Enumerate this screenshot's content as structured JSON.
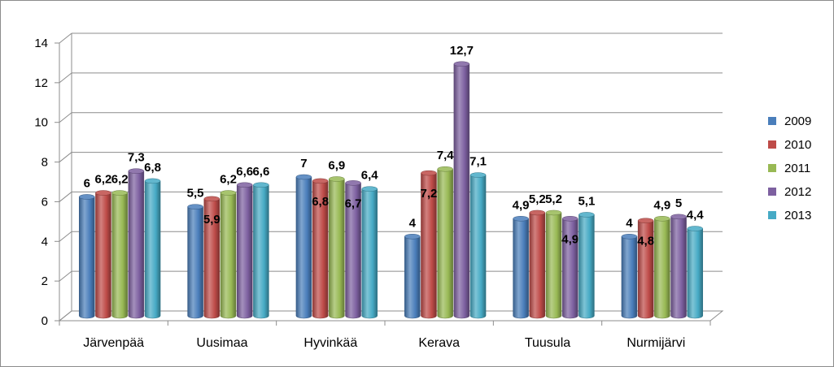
{
  "chart_data": {
    "type": "bar",
    "title": "",
    "xlabel": "",
    "ylabel": "",
    "ylim": [
      0,
      14
    ],
    "yticks": [
      0,
      2,
      4,
      6,
      8,
      10,
      12,
      14
    ],
    "grid": true,
    "legend_position": "right",
    "categories": [
      "Järvenpää",
      "Uusimaa",
      "Hyvinkää",
      "Kerava",
      "Tuusula",
      "Nurmijärvi"
    ],
    "series": [
      {
        "name": "2009",
        "color": "#4a7ebb",
        "values": [
          6,
          5.5,
          7,
          4,
          4.9,
          4
        ],
        "labels": [
          "6",
          "5,5",
          "7",
          "4",
          "4,9",
          "4"
        ]
      },
      {
        "name": "2010",
        "color": "#be4b48",
        "values": [
          6.2,
          5.9,
          6.8,
          7.2,
          5.2,
          4.8
        ],
        "labels": [
          "6,2",
          "5,9",
          "6,8",
          "7,2",
          "5,2",
          "4,8"
        ]
      },
      {
        "name": "2011",
        "color": "#98b954",
        "values": [
          6.2,
          6.2,
          6.9,
          7.4,
          5.2,
          4.9
        ],
        "labels": [
          "6,2",
          "6,2",
          "6,9",
          "7,4",
          "5,2",
          "4,9"
        ]
      },
      {
        "name": "2012",
        "color": "#7d60a0",
        "values": [
          7.3,
          6.6,
          6.7,
          12.7,
          4.9,
          5
        ],
        "labels": [
          "7,3",
          "6,6",
          "6,7",
          "12,7",
          "4,9",
          "5"
        ]
      },
      {
        "name": "2013",
        "color": "#46aac5",
        "values": [
          6.8,
          6.6,
          6.4,
          7.1,
          5.1,
          4.4
        ],
        "labels": [
          "6,8",
          "6,6",
          "6,4",
          "7,1",
          "5,1",
          "4,4"
        ]
      }
    ]
  }
}
